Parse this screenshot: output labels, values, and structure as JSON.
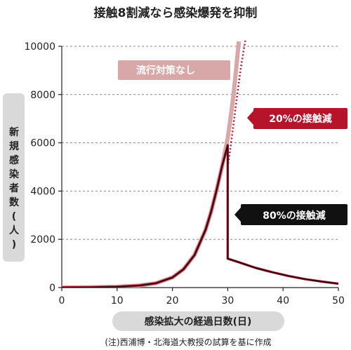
{
  "chart_data": {
    "type": "line",
    "title": "接触8割減なら感染爆発を抑制",
    "xlabel": "感染拡大の経過日数(日)",
    "ylabel": "新規感染者数(人)",
    "note": "(注)西浦博・北海道大教授の試算を基に作成",
    "xlim": [
      0,
      50
    ],
    "ylim": [
      0,
      10000
    ],
    "x_ticks": [
      "0",
      "10",
      "20",
      "30",
      "40",
      "50"
    ],
    "y_ticks": [
      "0",
      "2000",
      "4000",
      "6000",
      "8000",
      "10000"
    ],
    "grid": true,
    "series": [
      {
        "name": "流行対策なし",
        "style": "thick-pink",
        "color": "#d8a8a8",
        "points": [
          [
            0,
            5
          ],
          [
            5,
            12
          ],
          [
            10,
            35
          ],
          [
            14,
            85
          ],
          [
            17,
            180
          ],
          [
            20,
            420
          ],
          [
            22,
            760
          ],
          [
            24,
            1350
          ],
          [
            26,
            2400
          ],
          [
            27,
            3150
          ],
          [
            28,
            4050
          ],
          [
            29,
            5050
          ],
          [
            30,
            6200
          ],
          [
            30.5,
            7000
          ],
          [
            31,
            7900
          ],
          [
            31.5,
            9000
          ],
          [
            32,
            10200
          ]
        ]
      },
      {
        "name": "20%の接触減",
        "style": "dotted-red",
        "color": "#b5142b",
        "points": [
          [
            30,
            5000
          ],
          [
            30.5,
            5800
          ],
          [
            31,
            6700
          ],
          [
            31.5,
            7600
          ],
          [
            32,
            8500
          ],
          [
            32.5,
            9300
          ],
          [
            33,
            10000
          ],
          [
            33.3,
            10400
          ]
        ]
      },
      {
        "name": "80%の接触減",
        "style": "solid-black",
        "color": "#111111",
        "points": [
          [
            0,
            5
          ],
          [
            5,
            12
          ],
          [
            10,
            35
          ],
          [
            14,
            85
          ],
          [
            17,
            180
          ],
          [
            20,
            420
          ],
          [
            22,
            760
          ],
          [
            24,
            1350
          ],
          [
            26,
            2400
          ],
          [
            27,
            3150
          ],
          [
            28,
            4050
          ],
          [
            29,
            5050
          ],
          [
            30,
            5900
          ],
          [
            30,
            1200
          ],
          [
            32,
            1050
          ],
          [
            35,
            820
          ],
          [
            38,
            640
          ],
          [
            41,
            480
          ],
          [
            44,
            350
          ],
          [
            47,
            250
          ],
          [
            50,
            160
          ]
        ]
      }
    ]
  }
}
